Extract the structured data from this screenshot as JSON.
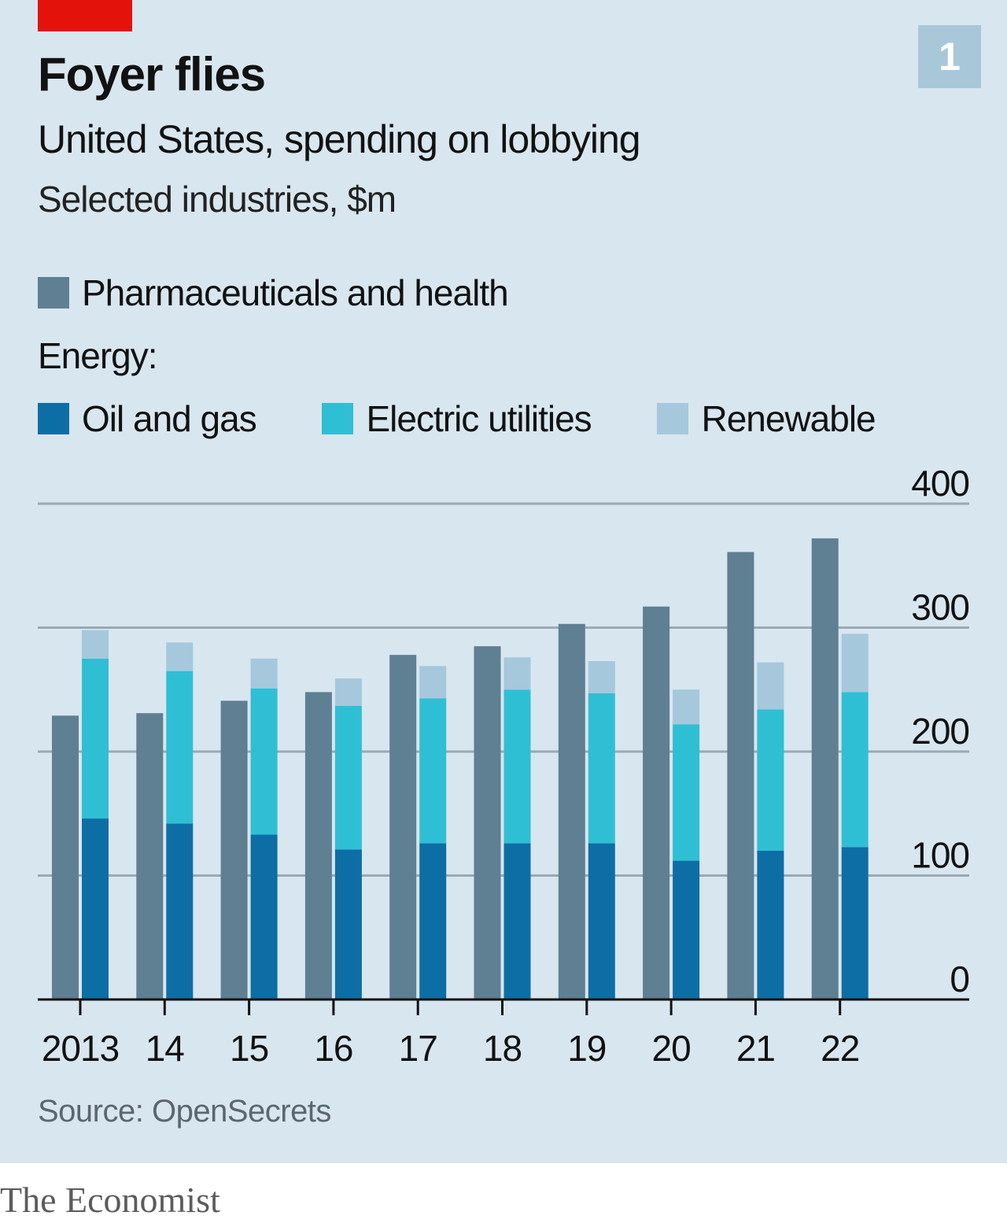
{
  "header": {
    "title": "Foyer flies",
    "subtitle": "United States, spending on lobbying",
    "units": "Selected industries, $m",
    "chart_number": "1"
  },
  "legend": {
    "pharma": "Pharmaceuticals and health",
    "group_label": "Energy:",
    "oil": "Oil and gas",
    "electric": "Electric utilities",
    "renewable": "Renewable"
  },
  "colors": {
    "pharma": "#5f7f93",
    "oil": "#0d6ea6",
    "electric": "#2fbfd4",
    "renewable": "#a5c8dc",
    "gridline": "#9aa9b2",
    "axis": "#121212",
    "panel": "#d8e6ef",
    "accent": "#e3120b"
  },
  "footer": {
    "source": "Source: OpenSecrets",
    "brand": "The Economist"
  },
  "chart_data": {
    "type": "bar",
    "title": "Foyer flies",
    "subtitle": "United States, spending on lobbying",
    "ylabel": "Selected industries, $m",
    "categories": [
      "2013",
      "14",
      "15",
      "16",
      "17",
      "18",
      "19",
      "20",
      "21",
      "22"
    ],
    "ylim": [
      0,
      400
    ],
    "yticks": [
      0,
      100,
      200,
      300,
      400
    ],
    "grid": true,
    "legend_position": "top-left",
    "series": [
      {
        "name": "Pharmaceuticals and health",
        "group": "pharma",
        "values": [
          229,
          231,
          241,
          248,
          278,
          285,
          303,
          317,
          361,
          372
        ]
      },
      {
        "name": "Oil and gas",
        "group": "energy",
        "stack": "energy",
        "values": [
          146,
          142,
          133,
          121,
          126,
          126,
          126,
          112,
          120,
          123
        ]
      },
      {
        "name": "Electric utilities",
        "group": "energy",
        "stack": "energy",
        "values": [
          129,
          123,
          118,
          116,
          117,
          124,
          121,
          110,
          114,
          125
        ]
      },
      {
        "name": "Renewable",
        "group": "energy",
        "stack": "energy",
        "values": [
          23,
          23,
          24,
          22,
          26,
          26,
          26,
          28,
          38,
          47
        ]
      }
    ]
  }
}
